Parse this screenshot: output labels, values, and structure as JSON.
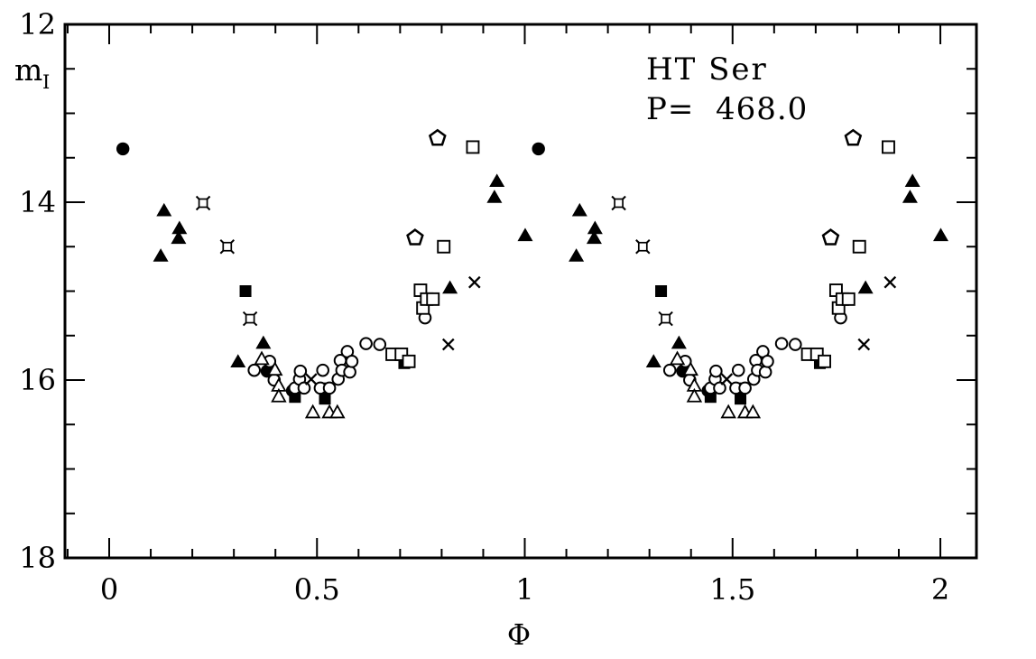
{
  "figure": {
    "star_name": "HT Ser",
    "period_label": "P=  468.0",
    "period_days": 468.0
  },
  "chart_data": {
    "type": "scatter",
    "title": "HT Ser",
    "subtitle": "P=  468.0",
    "xlabel": "Φ",
    "ylabel": "m",
    "ylabel_sub": "I",
    "axes": {
      "xlim": [
        -0.1064,
        2.0868
      ],
      "ylim": [
        12,
        18
      ],
      "y_inverted_magnitudes": true,
      "x_major_ticks": [
        0,
        0.5,
        1,
        1.5,
        2
      ],
      "x_tick_labels": [
        "0",
        "0.5",
        "1",
        "1.5",
        "2"
      ],
      "x_minor_step": 0.1,
      "y_major_ticks": [
        12,
        14,
        16,
        18
      ],
      "y_tick_labels": [
        "12",
        "14",
        "16",
        "18"
      ],
      "y_minor_step": 0.5,
      "grid": false,
      "legend": "none"
    },
    "plot_rule": "each observation is plotted twice, at phase Φ and Φ+1",
    "ink_color": "#000000",
    "background_color": "#ffffff",
    "series": [
      {
        "name": "filled-square",
        "marker": "filled-square",
        "points": [
          [
            0.328,
            15.0
          ],
          [
            0.447,
            16.19
          ],
          [
            0.519,
            16.21
          ],
          [
            0.71,
            15.81
          ]
        ]
      },
      {
        "name": "filled-circle",
        "marker": "filled-circle",
        "points": [
          [
            0.033,
            13.4
          ],
          [
            0.38,
            15.9
          ],
          [
            0.441,
            16.12
          ],
          [
            0.519,
            16.1
          ]
        ]
      },
      {
        "name": "open-circle",
        "marker": "open-circle",
        "points": [
          [
            0.349,
            15.89
          ],
          [
            0.386,
            15.79
          ],
          [
            0.397,
            16.0
          ],
          [
            0.447,
            16.09
          ],
          [
            0.458,
            15.99
          ],
          [
            0.46,
            15.9
          ],
          [
            0.469,
            16.09
          ],
          [
            0.508,
            16.09
          ],
          [
            0.514,
            15.89
          ],
          [
            0.53,
            16.09
          ],
          [
            0.551,
            15.99
          ],
          [
            0.556,
            15.78
          ],
          [
            0.56,
            15.89
          ],
          [
            0.573,
            15.68
          ],
          [
            0.579,
            15.91
          ],
          [
            0.584,
            15.79
          ],
          [
            0.618,
            15.59
          ],
          [
            0.651,
            15.6
          ],
          [
            0.76,
            15.3
          ]
        ]
      },
      {
        "name": "open-triangle",
        "marker": "open-triangle",
        "points": [
          [
            0.367,
            15.77
          ],
          [
            0.399,
            15.89
          ],
          [
            0.408,
            16.07
          ],
          [
            0.408,
            16.19
          ],
          [
            0.49,
            16.37
          ],
          [
            0.53,
            16.37
          ],
          [
            0.549,
            16.37
          ]
        ]
      },
      {
        "name": "open-square",
        "marker": "open-square",
        "points": [
          [
            0.681,
            15.71
          ],
          [
            0.703,
            15.71
          ],
          [
            0.721,
            15.79
          ],
          [
            0.749,
            14.99
          ],
          [
            0.755,
            15.19
          ],
          [
            0.764,
            15.09
          ],
          [
            0.779,
            15.09
          ],
          [
            0.805,
            14.5
          ],
          [
            0.875,
            13.38
          ]
        ]
      },
      {
        "name": "filled-triangle",
        "marker": "filled-triangle",
        "points": [
          [
            0.124,
            14.61
          ],
          [
            0.132,
            14.1
          ],
          [
            0.167,
            14.41
          ],
          [
            0.169,
            14.3
          ],
          [
            0.31,
            15.8
          ],
          [
            0.371,
            15.59
          ],
          [
            0.82,
            14.97
          ],
          [
            0.927,
            13.95
          ],
          [
            0.933,
            13.77
          ],
          [
            1.001,
            14.38
          ]
        ]
      },
      {
        "name": "star-square",
        "marker": "star-square",
        "points": [
          [
            0.226,
            14.01
          ],
          [
            0.284,
            14.5
          ],
          [
            0.339,
            15.31
          ]
        ]
      },
      {
        "name": "cross",
        "marker": "cross",
        "points": [
          [
            0.486,
            15.99
          ],
          [
            0.816,
            15.6
          ],
          [
            0.879,
            14.9
          ]
        ]
      },
      {
        "name": "open-pentagon",
        "marker": "open-pentagon",
        "points": [
          [
            0.736,
            14.4
          ],
          [
            0.79,
            13.28
          ]
        ]
      }
    ]
  }
}
